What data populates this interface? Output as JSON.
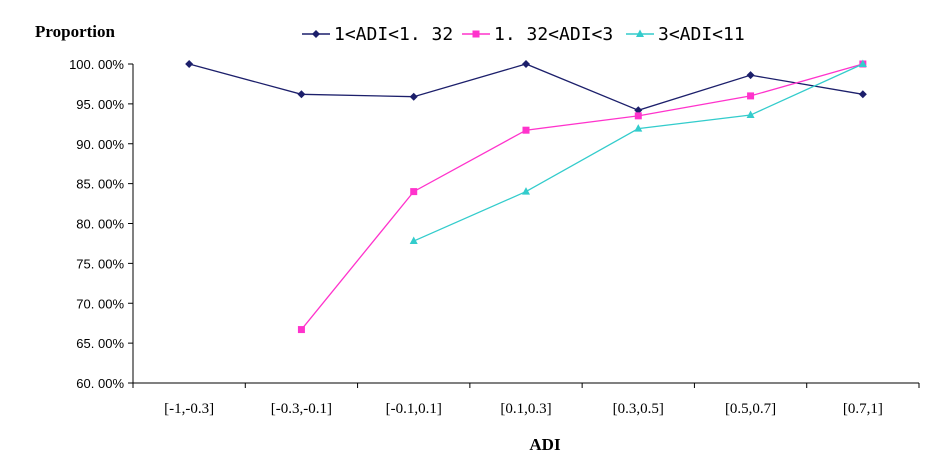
{
  "chart_data": {
    "type": "line",
    "ylabel": "Proportion",
    "xlabel": "ADI",
    "categories": [
      "[-1,-0.3]",
      "[-0.3,-0.1]",
      "[-0.1,0.1]",
      "[0.1,0.3]",
      "[0.3,0.5]",
      "[0.5,0.7]",
      "[0.7,1]"
    ],
    "ylim": [
      60,
      100
    ],
    "ystep": 5,
    "ytick_labels": [
      "60. 00%",
      "65. 00%",
      "70. 00%",
      "75. 00%",
      "80. 00%",
      "85. 00%",
      "90. 00%",
      "95. 00%",
      "100. 00%"
    ],
    "legend_position": "top",
    "grid": false,
    "series": [
      {
        "name": "1<ADI<1. 32",
        "color": "#1c1f6b",
        "marker": "diamond",
        "values": [
          100.0,
          96.2,
          95.9,
          100.0,
          94.2,
          98.6,
          96.2
        ]
      },
      {
        "name": "1. 32<ADI<3",
        "color": "#ff33cc",
        "marker": "square",
        "values": [
          null,
          66.7,
          84.0,
          91.7,
          93.5,
          96.0,
          100.0
        ]
      },
      {
        "name": "3<ADI<11",
        "color": "#33cccc",
        "marker": "triangle",
        "values": [
          null,
          null,
          77.8,
          84.0,
          91.9,
          93.6,
          100.0
        ]
      }
    ]
  }
}
